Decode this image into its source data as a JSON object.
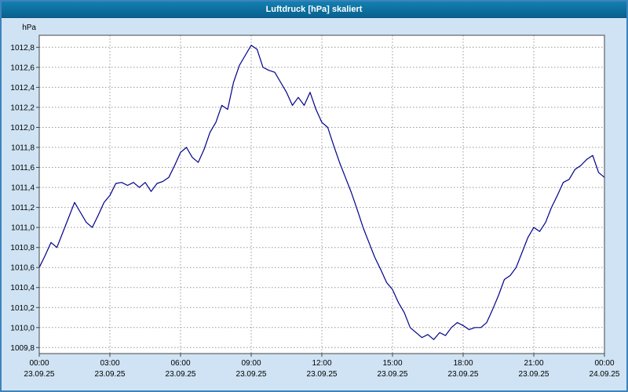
{
  "window": {
    "title": "Luftdruck [hPa] skaliert"
  },
  "colors": {
    "background": "#cfe3f4",
    "plot_background": "#ffffff",
    "titlebar": "#0a618e",
    "border": "#3c83bd",
    "plot_border": "#444444",
    "grid": "#999999",
    "line": "#00008b",
    "text": "#000000"
  },
  "chart_data": {
    "type": "line",
    "title": "Luftdruck [hPa] skaliert",
    "ylabel": "hPa",
    "xlabel": "",
    "grid": true,
    "legend": "none",
    "xlim": [
      0,
      24
    ],
    "ylim": [
      1009.74,
      1012.92
    ],
    "yticks": {
      "values": [
        1009.8,
        1010.0,
        1010.2,
        1010.4,
        1010.6,
        1010.8,
        1011.0,
        1011.2,
        1011.4,
        1011.6,
        1011.8,
        1012.0,
        1012.2,
        1012.4,
        1012.6,
        1012.8
      ],
      "labels": [
        "1009,8",
        "1010,0",
        "1010,2",
        "1010,4",
        "1010,6",
        "1010,8",
        "1011,0",
        "1011,2",
        "1011,4",
        "1011,6",
        "1011,8",
        "1012,0",
        "1012,2",
        "1012,4",
        "1012,6",
        "1012,8"
      ]
    },
    "xticks": [
      {
        "hour": 0,
        "time": "00:00",
        "date": "23.09.25"
      },
      {
        "hour": 3,
        "time": "03:00",
        "date": "23.09.25"
      },
      {
        "hour": 6,
        "time": "06:00",
        "date": "23.09.25"
      },
      {
        "hour": 9,
        "time": "09:00",
        "date": "23.09.25"
      },
      {
        "hour": 12,
        "time": "12:00",
        "date": "23.09.25"
      },
      {
        "hour": 15,
        "time": "15:00",
        "date": "23.09.25"
      },
      {
        "hour": 18,
        "time": "18:00",
        "date": "23.09.25"
      },
      {
        "hour": 21,
        "time": "21:00",
        "date": "23.09.25"
      },
      {
        "hour": 24,
        "time": "00:00",
        "date": "24.09.25"
      }
    ],
    "series": [
      {
        "name": "Luftdruck",
        "color": "#00008b",
        "x": [
          0,
          0.25,
          0.5,
          0.75,
          1,
          1.25,
          1.5,
          1.75,
          2,
          2.25,
          2.5,
          2.75,
          3,
          3.25,
          3.5,
          3.75,
          4,
          4.25,
          4.5,
          4.75,
          5,
          5.25,
          5.5,
          5.75,
          6,
          6.25,
          6.5,
          6.75,
          7,
          7.25,
          7.5,
          7.75,
          8,
          8.25,
          8.5,
          8.75,
          9,
          9.25,
          9.5,
          9.75,
          10,
          10.25,
          10.5,
          10.75,
          11,
          11.25,
          11.5,
          11.75,
          12,
          12.25,
          12.5,
          12.75,
          13,
          13.25,
          13.5,
          13.75,
          14,
          14.25,
          14.5,
          14.75,
          15,
          15.25,
          15.5,
          15.75,
          16,
          16.25,
          16.5,
          16.75,
          17,
          17.25,
          17.5,
          17.75,
          18,
          18.25,
          18.5,
          18.75,
          19,
          19.25,
          19.5,
          19.75,
          20,
          20.25,
          20.5,
          20.75,
          21,
          21.25,
          21.5,
          21.75,
          22,
          22.25,
          22.5,
          22.75,
          23,
          23.25,
          23.5,
          23.75,
          24
        ],
        "y": [
          1010.6,
          1010.72,
          1010.85,
          1010.8,
          1010.95,
          1011.1,
          1011.25,
          1011.15,
          1011.05,
          1011.0,
          1011.12,
          1011.25,
          1011.32,
          1011.44,
          1011.45,
          1011.42,
          1011.45,
          1011.4,
          1011.45,
          1011.36,
          1011.44,
          1011.46,
          1011.5,
          1011.62,
          1011.75,
          1011.8,
          1011.7,
          1011.65,
          1011.78,
          1011.95,
          1012.05,
          1012.22,
          1012.18,
          1012.45,
          1012.62,
          1012.72,
          1012.82,
          1012.78,
          1012.6,
          1012.57,
          1012.55,
          1012.45,
          1012.35,
          1012.22,
          1012.3,
          1012.22,
          1012.35,
          1012.18,
          1012.05,
          1012.0,
          1011.82,
          1011.65,
          1011.5,
          1011.35,
          1011.18,
          1011.0,
          1010.85,
          1010.7,
          1010.58,
          1010.45,
          1010.38,
          1010.25,
          1010.15,
          1010.0,
          1009.95,
          1009.9,
          1009.93,
          1009.88,
          1009.95,
          1009.92,
          1010.0,
          1010.05,
          1010.02,
          1009.98,
          1010.0,
          1010.0,
          1010.05,
          1010.18,
          1010.32,
          1010.48,
          1010.52,
          1010.6,
          1010.75,
          1010.9,
          1011.0,
          1010.96,
          1011.05,
          1011.2,
          1011.32,
          1011.45,
          1011.48,
          1011.58,
          1011.62,
          1011.68,
          1011.72,
          1011.55,
          1011.5
        ]
      }
    ]
  }
}
